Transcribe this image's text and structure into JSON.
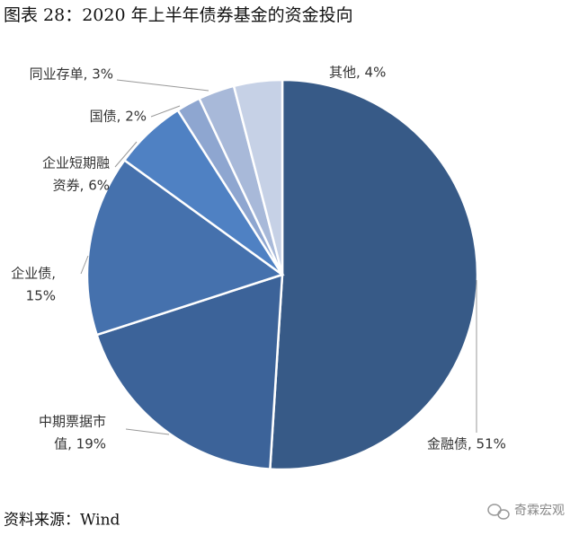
{
  "title": "图表 28：2020 年上半年债券基金的资金投向",
  "source": "资料来源：Wind",
  "watermark": "奇霖宏观",
  "chart_data": {
    "type": "pie",
    "values": [
      51,
      19,
      15,
      6,
      2,
      3,
      4
    ],
    "value_labels": [
      [
        "金融债, 51%"
      ],
      [
        "中期票据市",
        "值, 19%"
      ],
      [
        "企业债,",
        "15%"
      ],
      [
        "企业短期融",
        "资券, 6%"
      ],
      [
        "国债, 2%"
      ],
      [
        "同业存单, 3%"
      ],
      [
        "其他, 4%"
      ]
    ],
    "colors": [
      "#375a87",
      "#3c6399",
      "#4571ad",
      "#4f81c3",
      "#8ea6d0",
      "#a8b9d9",
      "#c6d1e6"
    ]
  }
}
